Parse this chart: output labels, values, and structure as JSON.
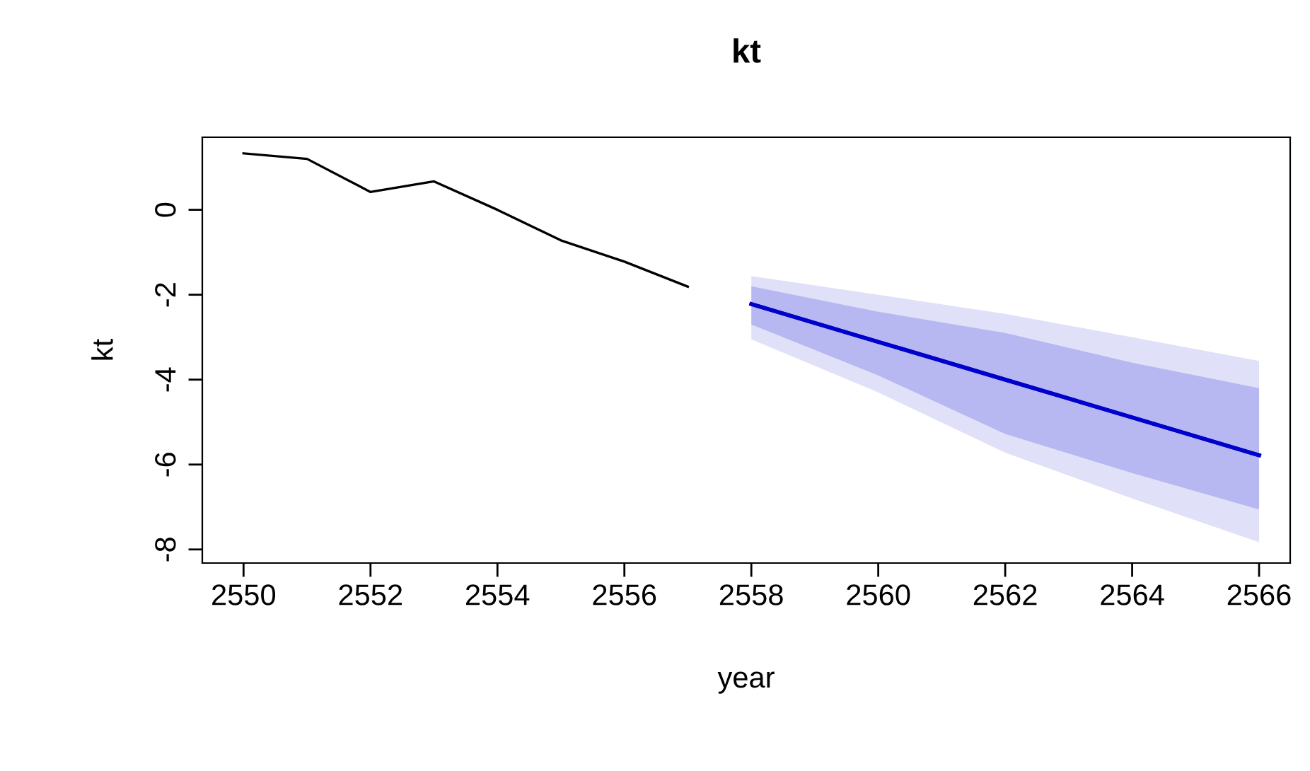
{
  "chart_data": {
    "type": "line",
    "title": "kt",
    "xlabel": "year",
    "ylabel": "kt",
    "xlim": [
      2549.35,
      2566.49
    ],
    "ylim": [
      -8.32,
      1.71
    ],
    "xticks": [
      2550,
      2552,
      2554,
      2556,
      2558,
      2560,
      2562,
      2564,
      2566
    ],
    "yticks": [
      {
        "value": -8,
        "label": "-8"
      },
      {
        "value": -6,
        "label": "-6"
      },
      {
        "value": -4,
        "label": "-4"
      },
      {
        "value": -2,
        "label": "-2"
      },
      0
    ],
    "grid": false,
    "legend": false,
    "series": [
      {
        "color": "#000000",
        "x": [
          2550,
          2551,
          2552,
          2553,
          2554,
          2555,
          2556,
          2557
        ],
        "values": [
          1.33,
          1.2,
          0.42,
          0.67,
          0.0,
          -0.72,
          -1.22,
          -1.81
        ]
      },
      {
        "color": "#0000cc",
        "x": [
          2558,
          2560,
          2562,
          2564,
          2566
        ],
        "values": [
          -2.22,
          -3.11,
          -4.0,
          -4.89,
          -5.78
        ],
        "lower": [
          -3.05,
          -4.3,
          -5.72,
          -6.8,
          -7.83
        ],
        "upper": [
          -1.56,
          -2.0,
          -2.45,
          -3.0,
          -3.56
        ]
      },
      {
        "color": "#0000cc",
        "x": [
          2558,
          2560,
          2562,
          2564,
          2566
        ],
        "values": [
          -2.22,
          -3.11,
          -4.0,
          -4.89,
          -5.78
        ],
        "lower": [
          -2.7,
          -3.9,
          -5.28,
          -6.2,
          -7.06
        ],
        "upper": [
          -1.8,
          -2.4,
          -2.9,
          -3.6,
          -4.2
        ]
      }
    ]
  }
}
